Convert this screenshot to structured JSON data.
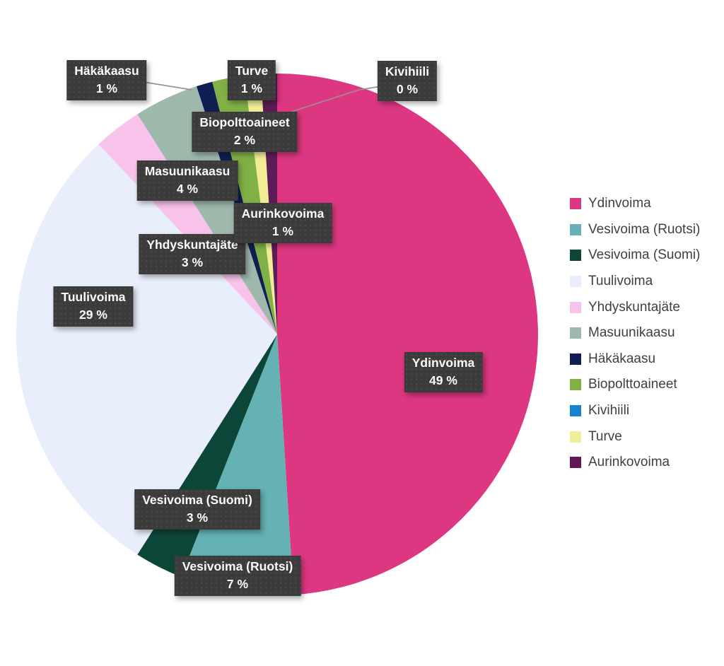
{
  "chart_data": {
    "type": "pie",
    "title": "",
    "legend_position": "right",
    "start_angle_deg": 0,
    "direction": "clockwise",
    "background_color": "#ffffff",
    "label_box_color": "#3b3b3b",
    "label_text_color": "#fbfbfb",
    "leader_line_color": "#949494",
    "series": [
      {
        "name": "Ydinvoima",
        "value": 49,
        "pct_label": "49 %",
        "color": "#dc3780"
      },
      {
        "name": "Vesivoima (Ruotsi)",
        "value": 7,
        "pct_label": "7 %",
        "color": "#64b2b3"
      },
      {
        "name": "Vesivoima (Suomi)",
        "value": 3,
        "pct_label": "3 %",
        "color": "#0c4639"
      },
      {
        "name": "Tuulivoima",
        "value": 29,
        "pct_label": "29 %",
        "color": "#e8eefb"
      },
      {
        "name": "Yhdyskuntajäte",
        "value": 3,
        "pct_label": "3 %",
        "color": "#f8c3ea"
      },
      {
        "name": "Masuunikaasu",
        "value": 4,
        "pct_label": "4 %",
        "color": "#9eb8ac"
      },
      {
        "name": "Häkäkaasu",
        "value": 1,
        "pct_label": "1 %",
        "color": "#101e52"
      },
      {
        "name": "Biopolttoaineet",
        "value": 2,
        "pct_label": "2 %",
        "color": "#80b146"
      },
      {
        "name": "Kivihiili",
        "value": 0,
        "pct_label": "0 %",
        "color": "#1583ce"
      },
      {
        "name": "Turve",
        "value": 1,
        "pct_label": "1 %",
        "color": "#f2ec97"
      },
      {
        "name": "Aurinkovoima",
        "value": 1,
        "pct_label": "1 %",
        "color": "#5e1b57"
      }
    ]
  }
}
